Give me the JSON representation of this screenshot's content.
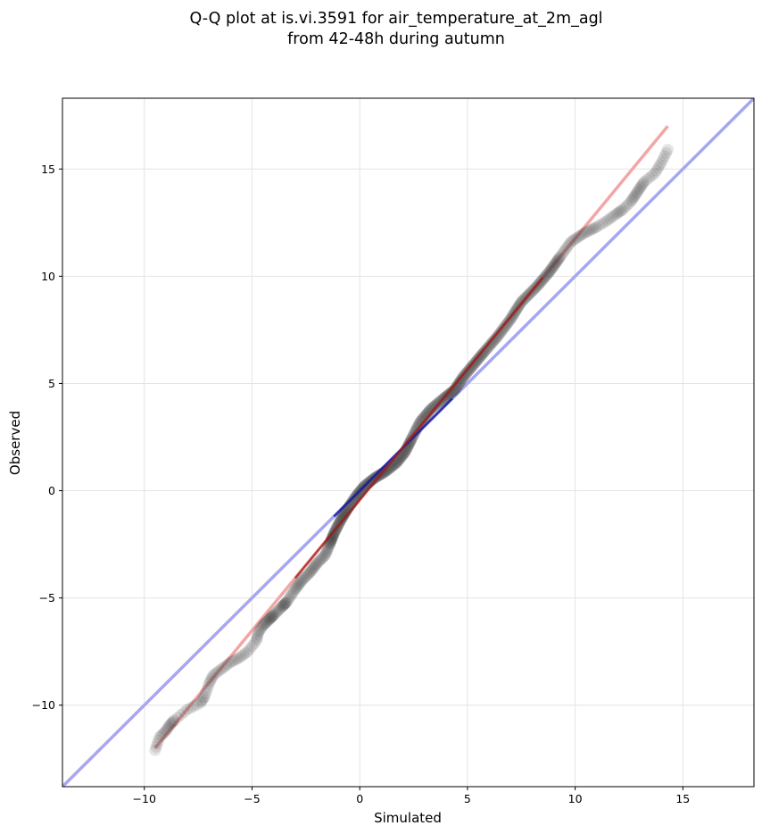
{
  "chart_data": {
    "type": "scatter",
    "title_lines": [
      "Q-Q plot at is.vi.3591 for air_temperature_at_2m_agl",
      "from 42-48h during autumn"
    ],
    "xlabel": "Simulated",
    "ylabel": "Observed",
    "xlim": [
      -13.8,
      18.3
    ],
    "ylim": [
      -13.8,
      18.3
    ],
    "xticks": [
      -10,
      -5,
      0,
      5,
      10,
      15
    ],
    "yticks": [
      -10,
      -5,
      0,
      5,
      10,
      15
    ],
    "xtick_labels": [
      "−10",
      "−5",
      "0",
      "5",
      "10",
      "15"
    ],
    "ytick_labels": [
      "−10",
      "−5",
      "0",
      "5",
      "10",
      "15"
    ],
    "grid": true,
    "colors": {
      "points": "#333333",
      "identity_line": "#a6a6f2",
      "fit_line": "#f2a6a6",
      "dense_identity": "#1a1aa6",
      "dense_fit": "#a61a1a"
    },
    "identity_line": {
      "x": [
        -13.8,
        18.3
      ],
      "y": [
        -13.8,
        18.3
      ]
    },
    "fit_line": {
      "x": [
        -9.5,
        14.3
      ],
      "y": [
        -12.0,
        17.0
      ]
    },
    "anchor_points": [
      {
        "x": -9.5,
        "y": -12.1
      },
      {
        "x": -9.3,
        "y": -11.5
      },
      {
        "x": -9.0,
        "y": -11.2
      },
      {
        "x": -8.8,
        "y": -10.9
      },
      {
        "x": -8.6,
        "y": -10.7
      },
      {
        "x": -8.0,
        "y": -10.2
      },
      {
        "x": -7.4,
        "y": -9.9
      },
      {
        "x": -7.2,
        "y": -9.6
      },
      {
        "x": -7.0,
        "y": -9.0
      },
      {
        "x": -6.8,
        "y": -8.6
      },
      {
        "x": -6.4,
        "y": -8.3
      },
      {
        "x": -6.0,
        "y": -8.0
      },
      {
        "x": -5.6,
        "y": -7.8
      },
      {
        "x": -5.2,
        "y": -7.5
      },
      {
        "x": -4.8,
        "y": -7.0
      },
      {
        "x": -4.7,
        "y": -6.6
      },
      {
        "x": -4.5,
        "y": -6.3
      },
      {
        "x": -4.2,
        "y": -6.0
      },
      {
        "x": -4.0,
        "y": -5.8
      },
      {
        "x": -3.6,
        "y": -5.4
      },
      {
        "x": -3.4,
        "y": -5.2
      },
      {
        "x": -3.0,
        "y": -4.6
      },
      {
        "x": -2.7,
        "y": -4.2
      },
      {
        "x": -2.3,
        "y": -3.8
      },
      {
        "x": -2.0,
        "y": -3.4
      },
      {
        "x": -1.6,
        "y": -3.0
      },
      {
        "x": -1.4,
        "y": -2.5
      },
      {
        "x": -1.2,
        "y": -2.0
      },
      {
        "x": -0.9,
        "y": -1.4
      },
      {
        "x": -0.6,
        "y": -0.9
      },
      {
        "x": -0.2,
        "y": -0.3
      },
      {
        "x": 0.2,
        "y": 0.2
      },
      {
        "x": 0.7,
        "y": 0.6
      },
      {
        "x": 1.2,
        "y": 0.9
      },
      {
        "x": 1.7,
        "y": 1.3
      },
      {
        "x": 2.1,
        "y": 1.8
      },
      {
        "x": 2.4,
        "y": 2.4
      },
      {
        "x": 2.8,
        "y": 3.2
      },
      {
        "x": 3.3,
        "y": 3.8
      },
      {
        "x": 3.9,
        "y": 4.3
      },
      {
        "x": 4.4,
        "y": 4.7
      },
      {
        "x": 4.8,
        "y": 5.3
      },
      {
        "x": 5.3,
        "y": 5.9
      },
      {
        "x": 5.8,
        "y": 6.5
      },
      {
        "x": 6.4,
        "y": 7.2
      },
      {
        "x": 7.0,
        "y": 8.0
      },
      {
        "x": 7.5,
        "y": 8.8
      },
      {
        "x": 8.2,
        "y": 9.5
      },
      {
        "x": 8.8,
        "y": 10.2
      },
      {
        "x": 9.3,
        "y": 10.9
      },
      {
        "x": 9.8,
        "y": 11.6
      },
      {
        "x": 10.4,
        "y": 12.0
      },
      {
        "x": 11.0,
        "y": 12.3
      },
      {
        "x": 11.5,
        "y": 12.6
      },
      {
        "x": 11.9,
        "y": 12.9
      },
      {
        "x": 12.2,
        "y": 13.1
      },
      {
        "x": 12.6,
        "y": 13.5
      },
      {
        "x": 12.8,
        "y": 13.8
      },
      {
        "x": 13.0,
        "y": 14.1
      },
      {
        "x": 13.2,
        "y": 14.4
      },
      {
        "x": 13.7,
        "y": 14.8
      },
      {
        "x": 14.0,
        "y": 15.3
      },
      {
        "x": 14.3,
        "y": 15.9
      }
    ]
  }
}
